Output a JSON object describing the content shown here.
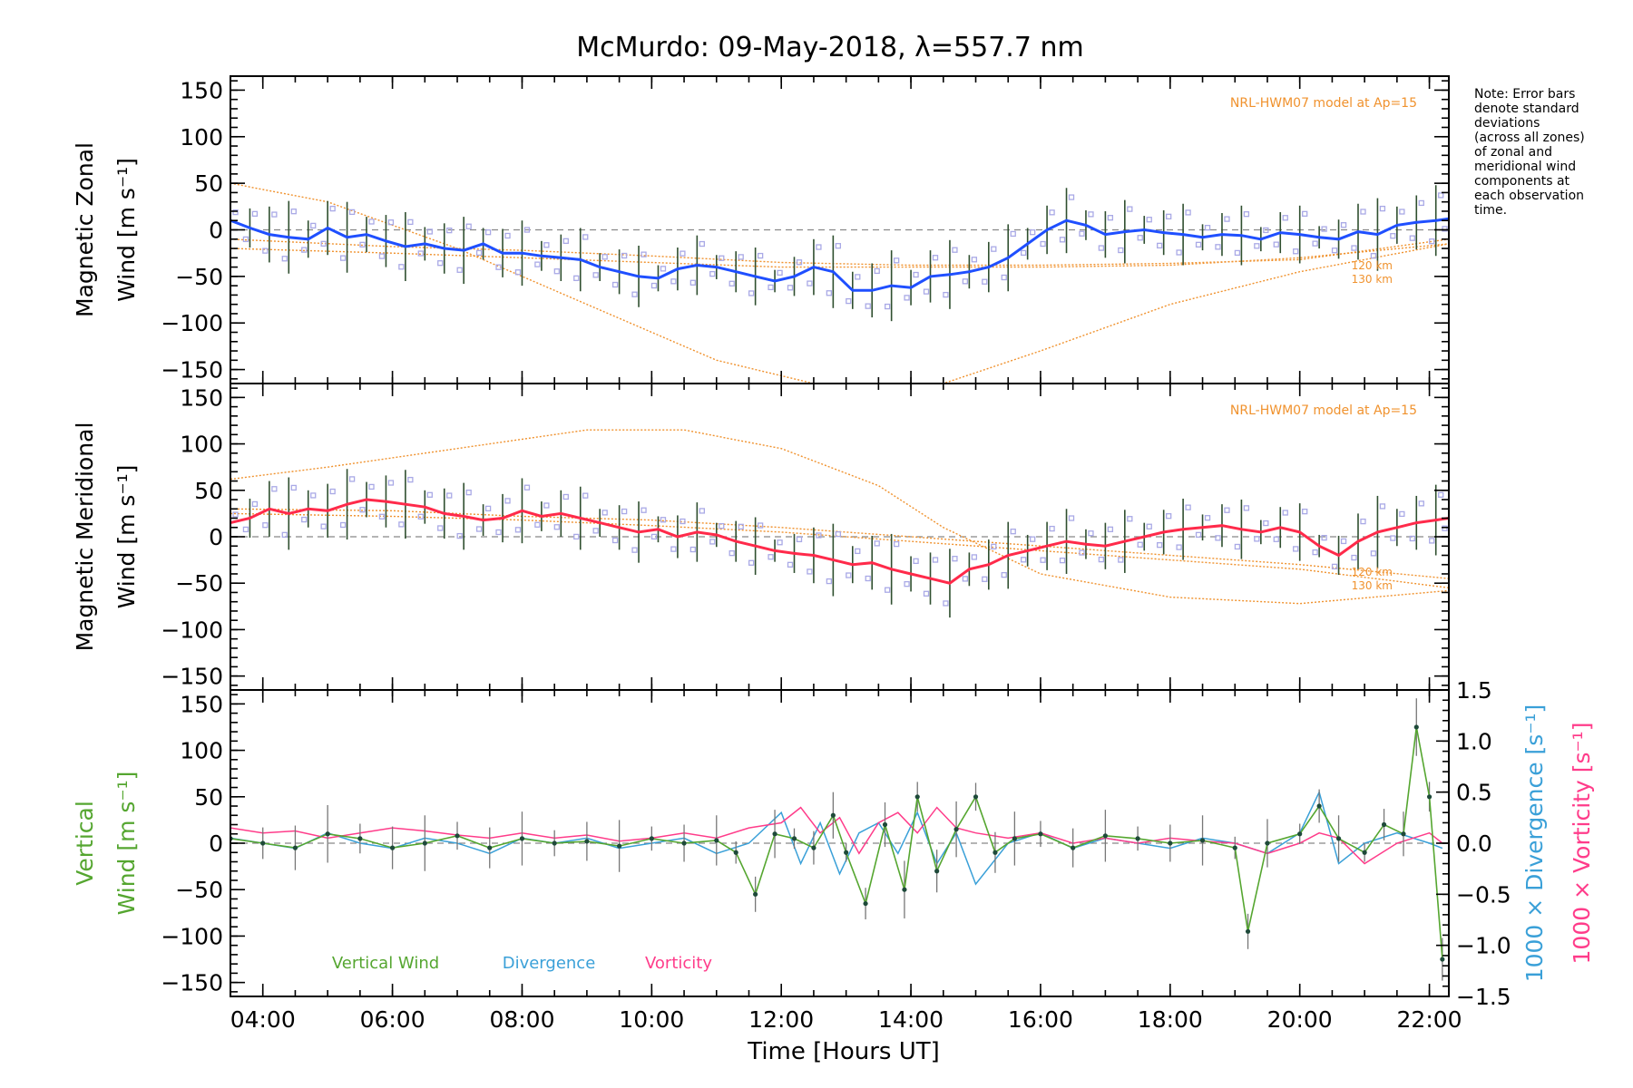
{
  "colors": {
    "axis": "#000000",
    "zonal_line": "#1f4fff",
    "meridional_line": "#ff2a4a",
    "model": "#f0922e",
    "vertical": "#55a630",
    "divergence": "#3aa0d8",
    "vorticity": "#ff3c8a",
    "scatter": "#a9a9e6"
  },
  "chart_data": {
    "title": "McMurdo: 09-May-2018, λ=557.7 nm",
    "type": "line",
    "xlabel": "Time [Hours UT]",
    "xlim": [
      3.5,
      22.3
    ],
    "xticks": [
      {
        "value": 4,
        "label": "04:00"
      },
      {
        "value": 6,
        "label": "06:00"
      },
      {
        "value": 8,
        "label": "08:00"
      },
      {
        "value": 10,
        "label": "10:00"
      },
      {
        "value": 12,
        "label": "12:00"
      },
      {
        "value": 14,
        "label": "14:00"
      },
      {
        "value": 16,
        "label": "16:00"
      },
      {
        "value": 18,
        "label": "18:00"
      },
      {
        "value": 20,
        "label": "20:00"
      },
      {
        "value": 22,
        "label": "22:00"
      }
    ],
    "note_lines": [
      "Note: Error bars",
      "denote standard",
      "deviations",
      "(across all zones)",
      "of zonal and",
      "meridional wind",
      "components at",
      "each observation",
      "time."
    ],
    "panels": [
      {
        "id": "zonal",
        "ylabel_line1": "Magnetic Zonal",
        "ylabel_line2": "Wind [m s⁻¹]",
        "ylim": [
          -165,
          165
        ],
        "yticks": [
          -150,
          -100,
          -50,
          0,
          50,
          100,
          150
        ],
        "model_label": "NRL-HWM07 model at Ap=15",
        "model_alt_labels": [
          "120 km",
          "130 km"
        ],
        "series": {
          "name": "Magnetic Zonal Wind",
          "x": [
            3.5,
            3.8,
            4.1,
            4.4,
            4.7,
            5.0,
            5.3,
            5.6,
            5.9,
            6.2,
            6.5,
            6.8,
            7.1,
            7.4,
            7.7,
            8.0,
            8.3,
            8.6,
            8.9,
            9.2,
            9.5,
            9.8,
            10.1,
            10.4,
            10.7,
            11.0,
            11.3,
            11.6,
            11.9,
            12.2,
            12.5,
            12.8,
            13.1,
            13.4,
            13.7,
            14.0,
            14.3,
            14.6,
            14.9,
            15.2,
            15.5,
            15.8,
            16.1,
            16.4,
            16.7,
            17.0,
            17.3,
            17.6,
            17.9,
            18.2,
            18.5,
            18.8,
            19.1,
            19.4,
            19.7,
            20.0,
            20.3,
            20.6,
            20.9,
            21.2,
            21.5,
            21.8,
            22.1,
            22.3
          ],
          "values": [
            10,
            2,
            -5,
            -8,
            -10,
            2,
            -8,
            -5,
            -12,
            -18,
            -15,
            -20,
            -22,
            -15,
            -25,
            -25,
            -28,
            -30,
            -32,
            -40,
            -45,
            -50,
            -52,
            -42,
            -38,
            -40,
            -45,
            -50,
            -55,
            -50,
            -40,
            -45,
            -65,
            -65,
            -60,
            -62,
            -50,
            -48,
            -45,
            -40,
            -30,
            -15,
            0,
            10,
            5,
            -5,
            -2,
            0,
            -3,
            -5,
            -8,
            -5,
            -6,
            -10,
            -3,
            -5,
            -8,
            -10,
            -2,
            -5,
            5,
            8,
            10,
            12
          ]
        },
        "model_curves": [
          {
            "x": [
              3.5,
              6.0,
              8.0,
              10.0,
              12.0,
              14.0,
              16.0,
              18.0,
              20.0,
              22.3
            ],
            "values": [
              -20,
              -25,
              -30,
              -35,
              -40,
              -40,
              -40,
              -38,
              -30,
              -15
            ]
          },
          {
            "x": [
              3.5,
              6.0,
              8.0,
              10.0,
              12.0,
              14.0,
              16.0,
              18.0,
              20.0,
              22.3
            ],
            "values": [
              -10,
              -18,
              -22,
              -28,
              -35,
              -38,
              -38,
              -36,
              -32,
              -10
            ]
          },
          {
            "x": [
              3.5,
              5.0,
              7.0,
              9.0,
              11.0,
              12.5,
              13.5,
              14.5,
              16.0,
              18.0,
              20.0,
              22.3
            ],
            "values": [
              50,
              30,
              -20,
              -80,
              -140,
              -165,
              -170,
              -165,
              -130,
              -80,
              -45,
              -15
            ]
          }
        ]
      },
      {
        "id": "meridional",
        "ylabel_line1": "Magnetic Meridional",
        "ylabel_line2": "Wind [m s⁻¹]",
        "ylim": [
          -165,
          165
        ],
        "yticks": [
          -150,
          -100,
          -50,
          0,
          50,
          100,
          150
        ],
        "model_label": "NRL-HWM07 model at Ap=15",
        "model_alt_labels": [
          "120 km",
          "130 km"
        ],
        "series": {
          "name": "Magnetic Meridional Wind",
          "x": [
            3.5,
            3.8,
            4.1,
            4.4,
            4.7,
            5.0,
            5.3,
            5.6,
            5.9,
            6.2,
            6.5,
            6.8,
            7.1,
            7.4,
            7.7,
            8.0,
            8.3,
            8.6,
            8.9,
            9.2,
            9.5,
            9.8,
            10.1,
            10.4,
            10.7,
            11.0,
            11.3,
            11.6,
            11.9,
            12.2,
            12.5,
            12.8,
            13.1,
            13.4,
            13.7,
            14.0,
            14.3,
            14.6,
            14.9,
            15.2,
            15.5,
            15.8,
            16.1,
            16.4,
            16.7,
            17.0,
            17.3,
            17.6,
            17.9,
            18.2,
            18.5,
            18.8,
            19.1,
            19.4,
            19.7,
            20.0,
            20.3,
            20.6,
            20.9,
            21.2,
            21.5,
            21.8,
            22.1,
            22.3
          ],
          "values": [
            15,
            20,
            30,
            25,
            30,
            28,
            35,
            40,
            38,
            35,
            32,
            25,
            22,
            18,
            20,
            28,
            22,
            25,
            20,
            15,
            10,
            5,
            8,
            0,
            5,
            2,
            -5,
            -10,
            -15,
            -18,
            -20,
            -25,
            -30,
            -28,
            -35,
            -40,
            -45,
            -50,
            -35,
            -30,
            -20,
            -15,
            -10,
            -5,
            -8,
            -10,
            -5,
            0,
            5,
            8,
            10,
            12,
            8,
            5,
            10,
            5,
            -10,
            -20,
            -5,
            5,
            10,
            15,
            18,
            20
          ]
        },
        "model_curves": [
          {
            "x": [
              3.5,
              5.0,
              7.0,
              9.0,
              10.5,
              12.0,
              13.5,
              14.5,
              16.0,
              18.0,
              20.0,
              22.3
            ],
            "values": [
              62,
              75,
              95,
              115,
              115,
              95,
              55,
              10,
              -40,
              -65,
              -72,
              -58
            ]
          },
          {
            "x": [
              3.5,
              6.0,
              8.0,
              10.0,
              12.0,
              14.0,
              16.0,
              18.0,
              20.0,
              22.3
            ],
            "values": [
              30,
              28,
              22,
              18,
              10,
              0,
              -10,
              -20,
              -30,
              -45
            ]
          },
          {
            "x": [
              3.5,
              6.0,
              8.0,
              10.0,
              12.0,
              14.0,
              16.0,
              18.0,
              20.0,
              22.3
            ],
            "values": [
              25,
              22,
              18,
              12,
              5,
              -5,
              -15,
              -25,
              -35,
              -55
            ]
          }
        ]
      },
      {
        "id": "vertical",
        "ylabel_line1": "Vertical",
        "ylabel_line2": "Wind [m s⁻¹]",
        "ylim": [
          -165,
          165
        ],
        "yticks": [
          -150,
          -100,
          -50,
          0,
          50,
          100,
          150
        ],
        "right_ylim": [
          -1.5,
          1.5
        ],
        "right_yticks": [
          -1.5,
          -1.0,
          -0.5,
          0.0,
          0.5,
          1.0,
          1.5
        ],
        "right_label_divergence": "1000 × Divergence [s⁻¹]",
        "right_label_vorticity": "1000 × Vorticity [s⁻¹]",
        "legend": [
          "Vertical Wind",
          "Divergence",
          "Vorticity"
        ],
        "series": [
          {
            "name": "Vertical Wind",
            "x": [
              3.5,
              4.0,
              4.5,
              5.0,
              5.5,
              6.0,
              6.5,
              7.0,
              7.5,
              8.0,
              8.5,
              9.0,
              9.5,
              10.0,
              10.5,
              11.0,
              11.3,
              11.6,
              11.9,
              12.2,
              12.5,
              12.8,
              13.0,
              13.3,
              13.6,
              13.9,
              14.1,
              14.4,
              14.7,
              15.0,
              15.3,
              15.6,
              16.0,
              16.5,
              17.0,
              17.5,
              18.0,
              18.5,
              19.0,
              19.2,
              19.5,
              20.0,
              20.3,
              20.6,
              21.0,
              21.3,
              21.6,
              21.8,
              22.0,
              22.2
            ],
            "values": [
              5,
              0,
              -5,
              10,
              5,
              -5,
              0,
              8,
              -5,
              5,
              0,
              2,
              -3,
              5,
              0,
              3,
              -10,
              -55,
              10,
              5,
              -5,
              30,
              -10,
              -65,
              20,
              -50,
              50,
              -30,
              15,
              50,
              -10,
              5,
              10,
              -5,
              8,
              5,
              0,
              3,
              -5,
              -95,
              0,
              10,
              40,
              5,
              -10,
              20,
              10,
              125,
              50,
              -125
            ]
          },
          {
            "name": "Divergence",
            "x": [
              3.5,
              4.0,
              4.5,
              5.0,
              5.5,
              6.0,
              6.5,
              7.0,
              7.5,
              8.0,
              8.5,
              9.0,
              9.5,
              10.0,
              10.5,
              11.0,
              11.5,
              12.0,
              12.3,
              12.6,
              12.9,
              13.2,
              13.5,
              13.8,
              14.1,
              14.4,
              14.7,
              15.0,
              15.5,
              16.0,
              16.5,
              17.0,
              17.5,
              18.0,
              18.5,
              19.0,
              19.5,
              20.0,
              20.3,
              20.6,
              21.0,
              21.5,
              22.0,
              22.2
            ],
            "values": [
              0.05,
              0.0,
              -0.05,
              0.1,
              0.0,
              -0.05,
              0.05,
              0.0,
              -0.1,
              0.05,
              0.0,
              0.05,
              -0.05,
              0.0,
              0.05,
              -0.1,
              0.0,
              0.3,
              -0.2,
              0.2,
              -0.3,
              0.1,
              0.2,
              -0.1,
              0.3,
              -0.2,
              0.1,
              -0.4,
              0.0,
              0.1,
              -0.05,
              0.05,
              0.0,
              -0.05,
              0.05,
              0.0,
              -0.1,
              0.1,
              0.5,
              -0.2,
              0.0,
              0.1,
              0.0,
              -0.05
            ]
          },
          {
            "name": "Vorticity",
            "x": [
              3.5,
              4.0,
              4.5,
              5.0,
              5.5,
              6.0,
              6.5,
              7.0,
              7.5,
              8.0,
              8.5,
              9.0,
              9.5,
              10.0,
              10.5,
              11.0,
              11.5,
              12.0,
              12.3,
              12.6,
              12.9,
              13.2,
              13.5,
              13.8,
              14.1,
              14.4,
              14.7,
              15.0,
              15.5,
              16.0,
              16.5,
              17.0,
              17.5,
              18.0,
              18.5,
              19.0,
              19.5,
              20.0,
              20.3,
              20.6,
              21.0,
              21.5,
              22.0,
              22.2
            ],
            "values": [
              0.15,
              0.1,
              0.12,
              0.05,
              0.1,
              0.15,
              0.12,
              0.08,
              0.05,
              0.1,
              0.05,
              0.08,
              0.02,
              0.05,
              0.1,
              0.05,
              0.15,
              0.2,
              0.35,
              0.1,
              0.25,
              -0.1,
              0.2,
              0.3,
              0.1,
              0.35,
              0.15,
              0.1,
              0.05,
              0.1,
              0.0,
              0.05,
              0.0,
              0.05,
              0.02,
              0.0,
              -0.1,
              0.0,
              0.1,
              0.05,
              -0.2,
              0.0,
              0.1,
              0.0
            ]
          }
        ]
      }
    ]
  }
}
